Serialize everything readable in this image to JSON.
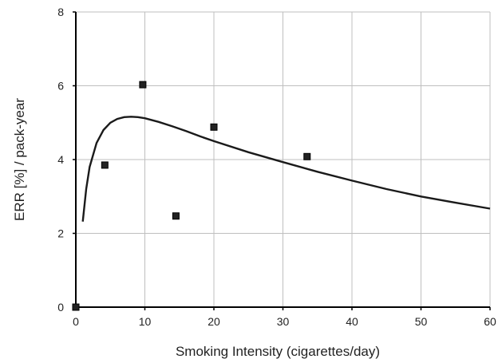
{
  "chart_data": {
    "type": "scatter",
    "title": "",
    "xlabel": "Smoking Intensity (cigarettes/day)",
    "ylabel": "ERR [%] / pack-year",
    "xlim": [
      0,
      60
    ],
    "ylim": [
      0,
      8
    ],
    "x_ticks": [
      0,
      10,
      20,
      30,
      40,
      50,
      60
    ],
    "y_ticks": [
      0,
      2,
      4,
      6,
      8
    ],
    "grid": true,
    "legend": "none",
    "colors": {
      "points": "#222222",
      "curve": "#1a1a1a",
      "grid": "#bfbfbf",
      "axis": "#000000"
    },
    "series": [
      {
        "type": "scatter",
        "marker": "square",
        "x": [
          0,
          4.2,
          9.7,
          14.5,
          20,
          33.5
        ],
        "y": [
          0,
          3.85,
          6.03,
          2.47,
          4.88,
          4.08
        ]
      },
      {
        "type": "line",
        "x": [
          1,
          1.5,
          2,
          3,
          4,
          5,
          6,
          7,
          8,
          9,
          10,
          12,
          14,
          16,
          18,
          20,
          25,
          30,
          35,
          40,
          45,
          50,
          55,
          60
        ],
        "y": [
          2.32,
          3.2,
          3.8,
          4.45,
          4.8,
          5.0,
          5.1,
          5.15,
          5.16,
          5.15,
          5.12,
          5.02,
          4.9,
          4.77,
          4.63,
          4.5,
          4.2,
          3.93,
          3.67,
          3.43,
          3.2,
          3.0,
          2.83,
          2.67
        ]
      }
    ]
  }
}
